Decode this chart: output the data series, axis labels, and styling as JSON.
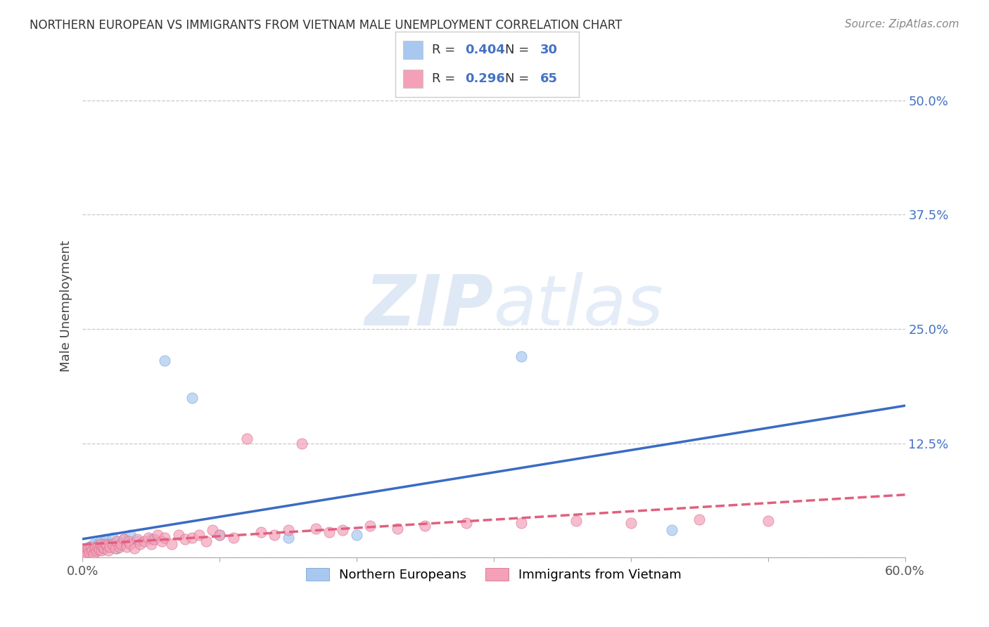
{
  "title": "NORTHERN EUROPEAN VS IMMIGRANTS FROM VIETNAM MALE UNEMPLOYMENT CORRELATION CHART",
  "source": "Source: ZipAtlas.com",
  "ylabel": "Male Unemployment",
  "xlim": [
    0.0,
    0.6
  ],
  "ylim": [
    0.0,
    0.55
  ],
  "ytick_positions": [
    0.0,
    0.125,
    0.25,
    0.375,
    0.5
  ],
  "ytick_labels": [
    "",
    "12.5%",
    "25.0%",
    "37.5%",
    "50.0%"
  ],
  "grid_color": "#c8c8d0",
  "background_color": "#ffffff",
  "watermark_zip": "ZIP",
  "watermark_atlas": "atlas",
  "series": [
    {
      "name": "Northern Europeans",
      "color": "#a8c8f0",
      "edge_color": "#6699cc",
      "R": 0.404,
      "N": 30,
      "line_color": "#3a6bc4",
      "line_style": "solid",
      "x": [
        0.001,
        0.002,
        0.003,
        0.004,
        0.005,
        0.007,
        0.008,
        0.009,
        0.01,
        0.011,
        0.012,
        0.013,
        0.015,
        0.017,
        0.018,
        0.02,
        0.022,
        0.025,
        0.028,
        0.03,
        0.035,
        0.04,
        0.05,
        0.06,
        0.08,
        0.1,
        0.15,
        0.2,
        0.32,
        0.43
      ],
      "y": [
        0.005,
        0.007,
        0.008,
        0.01,
        0.012,
        0.009,
        0.015,
        0.008,
        0.012,
        0.015,
        0.01,
        0.018,
        0.012,
        0.02,
        0.012,
        0.015,
        0.022,
        0.01,
        0.015,
        0.02,
        0.025,
        0.018,
        0.02,
        0.215,
        0.175,
        0.025,
        0.022,
        0.025,
        0.22,
        0.03
      ]
    },
    {
      "name": "Immigrants from Vietnam",
      "color": "#f4a0b8",
      "edge_color": "#d06080",
      "R": 0.296,
      "N": 65,
      "line_color": "#e06080",
      "line_style": "dashed",
      "x": [
        0.001,
        0.002,
        0.003,
        0.004,
        0.005,
        0.006,
        0.007,
        0.008,
        0.009,
        0.01,
        0.011,
        0.012,
        0.013,
        0.014,
        0.015,
        0.016,
        0.017,
        0.018,
        0.019,
        0.02,
        0.022,
        0.024,
        0.025,
        0.027,
        0.028,
        0.03,
        0.032,
        0.034,
        0.035,
        0.038,
        0.04,
        0.042,
        0.045,
        0.048,
        0.05,
        0.052,
        0.055,
        0.058,
        0.06,
        0.065,
        0.07,
        0.075,
        0.08,
        0.085,
        0.09,
        0.095,
        0.1,
        0.11,
        0.12,
        0.13,
        0.14,
        0.15,
        0.16,
        0.17,
        0.18,
        0.19,
        0.21,
        0.23,
        0.25,
        0.28,
        0.32,
        0.36,
        0.4,
        0.45,
        0.5
      ],
      "y": [
        0.005,
        0.008,
        0.003,
        0.01,
        0.006,
        0.012,
        0.008,
        0.004,
        0.01,
        0.007,
        0.012,
        0.009,
        0.015,
        0.008,
        0.012,
        0.01,
        0.015,
        0.013,
        0.008,
        0.012,
        0.015,
        0.01,
        0.018,
        0.012,
        0.015,
        0.02,
        0.012,
        0.018,
        0.015,
        0.01,
        0.02,
        0.015,
        0.018,
        0.022,
        0.015,
        0.02,
        0.025,
        0.018,
        0.022,
        0.015,
        0.025,
        0.02,
        0.022,
        0.025,
        0.018,
        0.03,
        0.025,
        0.022,
        0.13,
        0.028,
        0.025,
        0.03,
        0.125,
        0.032,
        0.028,
        0.03,
        0.035,
        0.032,
        0.035,
        0.038,
        0.038,
        0.04,
        0.038,
        0.042,
        0.04
      ]
    }
  ]
}
